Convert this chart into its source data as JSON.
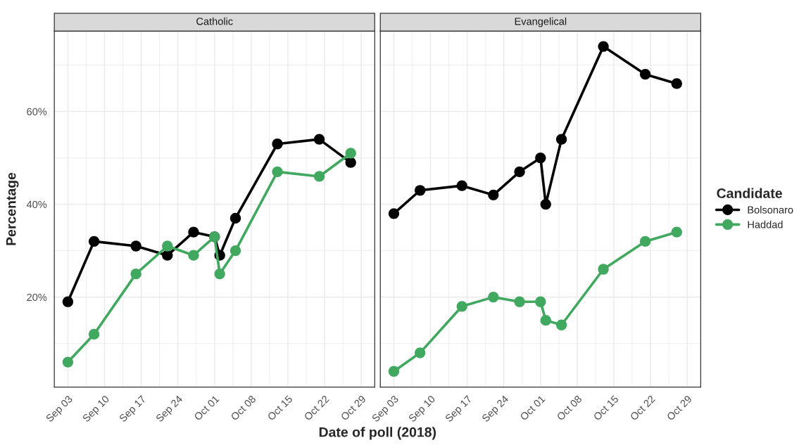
{
  "chart_data": [
    {
      "type": "line",
      "title": "Catholic",
      "xlabel": "Date of poll (2018)",
      "ylabel": "Percentage",
      "x": [
        "2018-09-03",
        "2018-09-08",
        "2018-09-16",
        "2018-09-22",
        "2018-09-27",
        "2018-10-01",
        "2018-10-02",
        "2018-10-05",
        "2018-10-13",
        "2018-10-21",
        "2018-10-27"
      ],
      "series": [
        {
          "color": "#000000",
          "values": [
            19,
            32,
            31,
            29,
            34,
            33,
            29,
            37,
            53,
            54,
            49
          ]
        },
        {
          "color": "#41a85f",
          "values": [
            6,
            12,
            25,
            31,
            29,
            33,
            25,
            30,
            47,
            46,
            51
          ]
        }
      ],
      "xlim": [
        "2018-08-31T10:00",
        "2018-10-31T14:00"
      ],
      "xticks": [
        {
          "value": "2018-09-03",
          "label": "Sep 03"
        },
        {
          "value": "2018-09-10",
          "label": "Sep 10"
        },
        {
          "value": "2018-09-17",
          "label": "Sep 17"
        },
        {
          "value": "2018-09-24",
          "label": "Sep 24"
        },
        {
          "value": "2018-10-01",
          "label": "Oct 01"
        },
        {
          "value": "2018-10-08",
          "label": "Oct 08"
        },
        {
          "value": "2018-10-15",
          "label": "Oct 15"
        },
        {
          "value": "2018-10-22",
          "label": "Oct 22"
        },
        {
          "value": "2018-10-29",
          "label": "Oct 29"
        }
      ],
      "ylim": [
        0.6,
        77.3
      ],
      "yticks": [
        {
          "value": 20,
          "label": "20%"
        },
        {
          "value": 40,
          "label": "40%"
        },
        {
          "value": 60,
          "label": "60%"
        }
      ],
      "grid": true,
      "marker": "circle",
      "line_style": "solid"
    },
    {
      "type": "line",
      "title": "Evangelical",
      "legend_title": "Candidate",
      "x": [
        "2018-09-03",
        "2018-09-08",
        "2018-09-16",
        "2018-09-22",
        "2018-09-27",
        "2018-10-01",
        "2018-10-02",
        "2018-10-05",
        "2018-10-13",
        "2018-10-21",
        "2018-10-27"
      ],
      "series": [
        {
          "name": "Bolsonaro",
          "color": "#000000",
          "values": [
            38,
            43,
            44,
            42,
            47,
            50,
            40,
            54,
            74,
            68,
            66
          ]
        },
        {
          "name": "Haddad",
          "color": "#41a85f",
          "values": [
            4,
            8,
            18,
            20,
            19,
            19,
            15,
            14,
            26,
            32,
            34
          ]
        }
      ],
      "xlim": [
        "2018-08-31T10:00",
        "2018-10-31T14:00"
      ],
      "xticks": [
        {
          "value": "2018-09-03",
          "label": "Sep 03"
        },
        {
          "value": "2018-09-10",
          "label": "Sep 10"
        },
        {
          "value": "2018-09-17",
          "label": "Sep 17"
        },
        {
          "value": "2018-09-24",
          "label": "Sep 24"
        },
        {
          "value": "2018-10-01",
          "label": "Oct 01"
        },
        {
          "value": "2018-10-08",
          "label": "Oct 08"
        },
        {
          "value": "2018-10-15",
          "label": "Oct 15"
        },
        {
          "value": "2018-10-22",
          "label": "Oct 22"
        },
        {
          "value": "2018-10-29",
          "label": "Oct 29"
        }
      ],
      "ylim": [
        0.6,
        77.3
      ],
      "yticks": [
        {
          "value": 20,
          "label": null
        },
        {
          "value": 40,
          "label": null
        },
        {
          "value": 60,
          "label": null
        }
      ],
      "tick_labels": "x",
      "grid": true,
      "marker": "circle",
      "line_style": "solid",
      "legend": "right"
    }
  ]
}
